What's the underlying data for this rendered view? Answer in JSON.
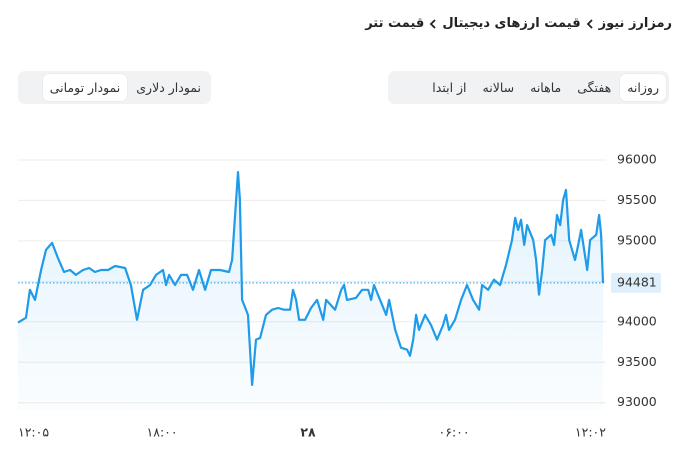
{
  "breadcrumb": [
    "رمزارز نیوز",
    "قیمت ارزهای دیجیتال",
    "قیمت تتر"
  ],
  "period_tabs": {
    "items": [
      "روزانه",
      "هفتگی",
      "ماهانه",
      "سالانه",
      "از ابتدا"
    ],
    "selected": 0
  },
  "currency_tabs": {
    "items": [
      "نمودار دلاری",
      "نمودار تومانی"
    ],
    "selected": 1
  },
  "chart_data": {
    "type": "line",
    "color": "#1e9be9",
    "x": [
      0.0,
      0.33,
      0.49,
      0.7,
      0.95,
      1.15,
      1.4,
      1.64,
      1.89,
      2.14,
      2.38,
      2.67,
      2.92,
      3.16,
      3.41,
      3.7,
      3.99,
      4.4,
      4.64,
      4.89,
      5.14,
      5.43,
      5.67,
      5.96,
      6.08,
      6.21,
      6.45,
      6.7,
      6.95,
      7.19,
      7.44,
      7.69,
      7.93,
      8.3,
      8.67,
      8.8,
      8.92,
      9.04,
      9.12,
      9.21,
      9.45,
      9.62,
      9.78,
      9.95,
      10.19,
      10.44,
      10.69,
      10.93,
      11.18,
      11.3,
      11.43,
      11.55,
      11.8,
      12.04,
      12.29,
      12.54,
      12.66,
      13.03,
      13.28,
      13.4,
      13.52,
      13.89,
      14.14,
      14.39,
      14.51,
      14.63,
      14.88,
      15.13,
      15.25,
      15.5,
      15.74,
      15.99,
      16.11,
      16.24,
      16.36,
      16.48,
      16.73,
      16.97,
      17.22,
      17.47,
      17.59,
      17.71,
      17.96,
      18.21,
      18.45,
      18.7,
      18.95,
      19.07,
      19.32,
      19.56,
      19.81,
      20.06,
      20.3,
      20.43,
      20.55,
      20.67,
      20.8,
      20.92,
      21.17,
      21.29,
      21.41,
      21.54,
      21.66,
      21.91,
      22.03,
      22.15,
      22.28,
      22.4,
      22.52,
      22.65,
      22.89,
      23.02,
      23.14,
      23.39,
      23.51,
      23.76,
      23.88,
      23.96,
      24.04
    ],
    "values": [
      93990,
      94050,
      94395,
      94270,
      94640,
      94890,
      94975,
      94790,
      94615,
      94640,
      94580,
      94640,
      94665,
      94615,
      94640,
      94640,
      94690,
      94665,
      94455,
      94025,
      94395,
      94455,
      94580,
      94640,
      94455,
      94580,
      94455,
      94580,
      94580,
      94395,
      94640,
      94395,
      94640,
      94640,
      94615,
      94765,
      95320,
      95850,
      95505,
      94270,
      94085,
      93220,
      93780,
      93800,
      94085,
      94150,
      94170,
      94150,
      94150,
      94395,
      94270,
      94025,
      94025,
      94170,
      94270,
      94025,
      94270,
      94150,
      94395,
      94455,
      94270,
      94295,
      94395,
      94395,
      94270,
      94455,
      94270,
      94085,
      94270,
      93900,
      93680,
      93655,
      93580,
      93780,
      94085,
      93900,
      94085,
      93960,
      93780,
      93960,
      94085,
      93900,
      94025,
      94270,
      94455,
      94270,
      94150,
      94455,
      94395,
      94520,
      94455,
      94705,
      95010,
      95285,
      95135,
      95260,
      94950,
      95195,
      95010,
      94765,
      94335,
      94640,
      95010,
      95075,
      94950,
      95320,
      95195,
      95505,
      95630,
      95010,
      94765,
      94950,
      95135,
      94640,
      95010,
      95075,
      95320,
      95075,
      94481
    ],
    "xlim": [
      0,
      24.04
    ],
    "xticks": [
      {
        "value": 0,
        "label": "۱۲:۰۵"
      },
      {
        "value": 5.92,
        "label": "۱۸:۰۰"
      },
      {
        "value": 11.92,
        "label": "۲۸"
      },
      {
        "value": 17.92,
        "label": "۰۶:۰۰"
      },
      {
        "value": 23.95,
        "label": "۱۲:۰۲"
      }
    ],
    "ylim": [
      92910,
      96370
    ],
    "yticks": [
      93000,
      93500,
      94000,
      94500,
      95000,
      95500,
      96000
    ],
    "grid": true,
    "current_value": 94481
  }
}
